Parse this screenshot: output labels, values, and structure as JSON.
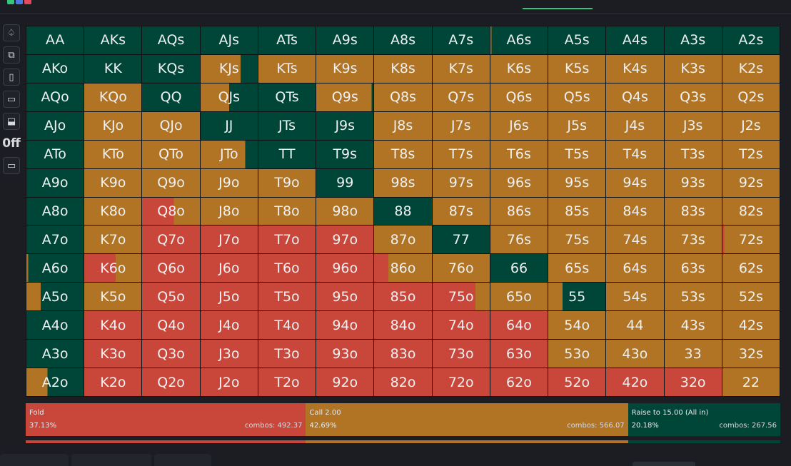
{
  "colors": {
    "fold": "#c9473a",
    "call": "#b07424",
    "raise": "#004638",
    "accent": "#34c77b"
  },
  "toolbar": {
    "tools": [
      {
        "name": "spade-icon",
        "glyph": "♤"
      },
      {
        "name": "copy-icon",
        "glyph": "⧉"
      },
      {
        "name": "cards-icon",
        "glyph": "▯"
      },
      {
        "name": "comment-icon",
        "glyph": "▭"
      },
      {
        "name": "layout-icon",
        "glyph": "⬓"
      },
      {
        "name": "off-toggle",
        "glyph": "0ff",
        "plain": true
      },
      {
        "name": "comment-alt-icon",
        "glyph": "▭"
      }
    ]
  },
  "hands": [
    [
      "AA",
      "AKs",
      "AQs",
      "AJs",
      "ATs",
      "A9s",
      "A8s",
      "A7s",
      "A6s",
      "A5s",
      "A4s",
      "A3s",
      "A2s"
    ],
    [
      "AKo",
      "KK",
      "KQs",
      "KJs",
      "KTs",
      "K9s",
      "K8s",
      "K7s",
      "K6s",
      "K5s",
      "K4s",
      "K3s",
      "K2s"
    ],
    [
      "AQo",
      "KQo",
      "QQ",
      "QJs",
      "QTs",
      "Q9s",
      "Q8s",
      "Q7s",
      "Q6s",
      "Q5s",
      "Q4s",
      "Q3s",
      "Q2s"
    ],
    [
      "AJo",
      "KJo",
      "QJo",
      "JJ",
      "JTs",
      "J9s",
      "J8s",
      "J7s",
      "J6s",
      "J5s",
      "J4s",
      "J3s",
      "J2s"
    ],
    [
      "ATo",
      "KTo",
      "QTo",
      "JTo",
      "TT",
      "T9s",
      "T8s",
      "T7s",
      "T6s",
      "T5s",
      "T4s",
      "T3s",
      "T2s"
    ],
    [
      "A9o",
      "K9o",
      "Q9o",
      "J9o",
      "T9o",
      "99",
      "98s",
      "97s",
      "96s",
      "95s",
      "94s",
      "93s",
      "92s"
    ],
    [
      "A8o",
      "K8o",
      "Q8o",
      "J8o",
      "T8o",
      "98o",
      "88",
      "87s",
      "86s",
      "85s",
      "84s",
      "83s",
      "82s"
    ],
    [
      "A7o",
      "K7o",
      "Q7o",
      "J7o",
      "T7o",
      "97o",
      "87o",
      "77",
      "76s",
      "75s",
      "74s",
      "73s",
      "72s"
    ],
    [
      "A6o",
      "K6o",
      "Q6o",
      "J6o",
      "T6o",
      "96o",
      "86o",
      "76o",
      "66",
      "65s",
      "64s",
      "63s",
      "62s"
    ],
    [
      "A5o",
      "K5o",
      "Q5o",
      "J5o",
      "T5o",
      "95o",
      "85o",
      "75o",
      "65o",
      "55",
      "54s",
      "53s",
      "52s"
    ],
    [
      "A4o",
      "K4o",
      "Q4o",
      "J4o",
      "T4o",
      "94o",
      "84o",
      "74o",
      "64o",
      "54o",
      "44",
      "43s",
      "42s"
    ],
    [
      "A3o",
      "K3o",
      "Q3o",
      "J3o",
      "T3o",
      "93o",
      "83o",
      "73o",
      "63o",
      "53o",
      "43o",
      "33",
      "32s"
    ],
    [
      "A2o",
      "K2o",
      "Q2o",
      "J2o",
      "T2o",
      "92o",
      "82o",
      "72o",
      "62o",
      "52o",
      "42o",
      "32o",
      "22"
    ]
  ],
  "strategy_codes": [
    [
      "R",
      "R",
      "R",
      "R",
      "R",
      "R",
      "R",
      "R",
      "C:0.02",
      "R",
      "R",
      "R",
      "R"
    ],
    [
      "R",
      "R",
      "R",
      "C:0.70",
      "C",
      "C",
      "C",
      "C",
      "C",
      "C",
      "C",
      "C",
      "C"
    ],
    [
      "R",
      "C",
      "R",
      "C:0.50",
      "R",
      "C:0.97",
      "C",
      "C",
      "C",
      "C",
      "C",
      "C",
      "C"
    ],
    [
      "R",
      "C",
      "C",
      "R",
      "R",
      "R",
      "C",
      "C",
      "C",
      "C",
      "C",
      "C",
      "C"
    ],
    [
      "R",
      "C",
      "C",
      "C:0.78",
      "R",
      "R",
      "C",
      "C",
      "C",
      "C",
      "C",
      "C",
      "C"
    ],
    [
      "R",
      "C",
      "C",
      "C",
      "C",
      "R",
      "C",
      "C",
      "C",
      "C",
      "C",
      "C",
      "C"
    ],
    [
      "R",
      "C",
      "F:0.55",
      "C",
      "C",
      "C",
      "R",
      "C",
      "C",
      "C",
      "C",
      "C",
      "C"
    ],
    [
      "R",
      "C",
      "F",
      "F",
      "F",
      "F",
      "C",
      "R",
      "C",
      "C",
      "C",
      "C",
      "F:0.03"
    ],
    [
      "C:0.03",
      "F:0.55",
      "F",
      "F",
      "F",
      "F",
      "F:0.25",
      "C",
      "R",
      "C",
      "C",
      "C",
      "C"
    ],
    [
      "C:0.25",
      "C",
      "F",
      "F",
      "F",
      "F",
      "F",
      "F:0.75",
      "C",
      "C:0.25",
      "C",
      "C",
      "C"
    ],
    [
      "R",
      "F",
      "F",
      "F",
      "F",
      "F",
      "F",
      "F",
      "F",
      "C",
      "C",
      "C",
      "C"
    ],
    [
      "R",
      "F",
      "F",
      "F",
      "F",
      "F",
      "F",
      "F",
      "F",
      "C",
      "C",
      "C",
      "C"
    ],
    [
      "C:0.37",
      "F",
      "F",
      "F",
      "F",
      "F",
      "F",
      "F",
      "F",
      "F",
      "F",
      "F",
      "C"
    ]
  ],
  "strategy": [
    {
      "key": "fold",
      "label": "Fold",
      "pct": "37.13%",
      "combos": "combos: 492.37",
      "value": 37.13
    },
    {
      "key": "call",
      "label": "Call 2.00",
      "pct": "42.69%",
      "combos": "combos: 566.07",
      "value": 42.69
    },
    {
      "key": "raise",
      "label": "Raise to 15.00 (All in)",
      "pct": "20.18%",
      "combos": "combos: 267.56",
      "value": 20.18
    }
  ],
  "progress": [
    {
      "key": "fold",
      "value": 37.13
    },
    {
      "key": "call",
      "value": 42.69
    },
    {
      "key": "raise",
      "value": 20.18
    }
  ]
}
